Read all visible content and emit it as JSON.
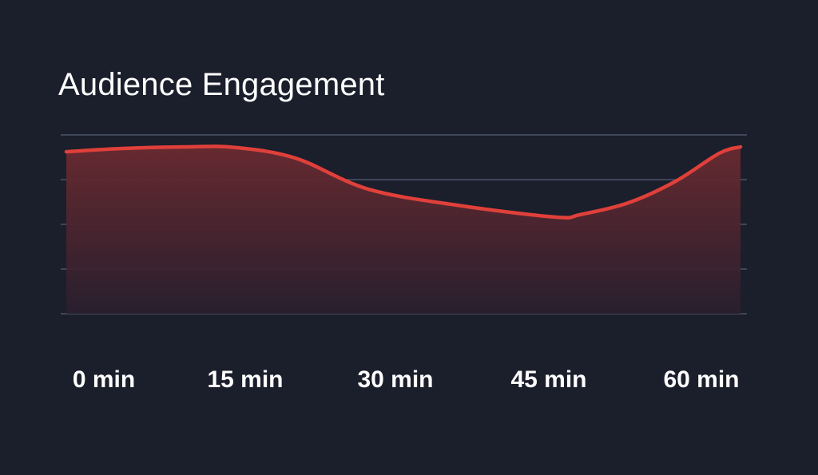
{
  "chart_data": {
    "type": "area",
    "title": "Audience Engagement",
    "xlabel": "",
    "ylabel": "",
    "x_tick_labels": [
      "0 min",
      "15 min",
      "30 min",
      "45 min",
      "60 min"
    ],
    "x_ticks": [
      0,
      15,
      30,
      45,
      60
    ],
    "xlim": [
      0,
      60
    ],
    "ylim": [
      0,
      100
    ],
    "y_gridlines": [
      0,
      25,
      50,
      75,
      100
    ],
    "grid": true,
    "series": [
      {
        "x": [
          0,
          5,
          10.6,
          15,
          20.4,
          26.9,
          35,
          43.6,
          45.7,
          50,
          54.2,
          58.1,
          60
        ],
        "y": [
          90.6,
          92.4,
          93.3,
          93.0,
          87.0,
          69.6,
          60.5,
          54.0,
          55.4,
          62.0,
          74.0,
          89.7,
          93.3
        ]
      }
    ],
    "colors": {
      "line": "#e0403a",
      "fill_top": "#6b2a30",
      "fill_bottom": "#2a1f2e",
      "grid": "#4a5366",
      "background": "#1b1e2b"
    }
  }
}
